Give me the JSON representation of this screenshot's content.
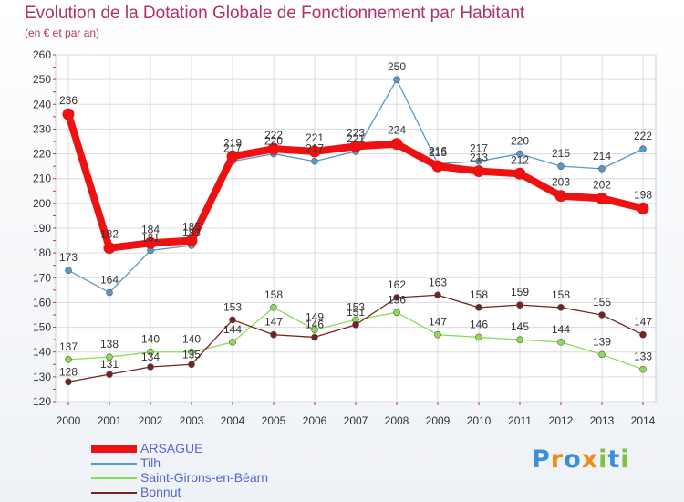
{
  "title": "Evolution de la Dotation Globale de Fonctionnement par Habitant",
  "subtitle": "(en € et par an)",
  "logo": {
    "letters": [
      "P",
      "r",
      "o",
      "x",
      "i",
      "t",
      "i"
    ],
    "colors": [
      "#3a8fd6",
      "#f08a1c",
      "#3a8fd6",
      "#f08a1c",
      "#7dc242",
      "#3a8fd6",
      "#7dc242"
    ]
  },
  "chart_data": {
    "type": "line",
    "title": "Evolution de la Dotation Globale de Fonctionnement par Habitant",
    "subtitle": "(en € et par an)",
    "x": [
      "2000",
      "2001",
      "2002",
      "2003",
      "2004",
      "2005",
      "2006",
      "2007",
      "2008",
      "2009",
      "2010",
      "2011",
      "2012",
      "2013",
      "2014"
    ],
    "ylim": [
      120,
      260
    ],
    "yticks": [
      120,
      130,
      140,
      150,
      160,
      170,
      180,
      190,
      200,
      210,
      220,
      230,
      240,
      250,
      260
    ],
    "grid": true,
    "legend_position": "bottom-left",
    "series": [
      {
        "name": "ARSAGUE",
        "color": "#ee1111",
        "values": [
          236,
          182,
          184,
          185,
          219,
          222,
          221,
          223,
          224,
          215,
          213,
          212,
          203,
          202,
          198
        ]
      },
      {
        "name": "Tilh",
        "color": "#5599cc",
        "values": [
          173,
          164,
          181,
          183,
          217,
          220,
          217,
          221,
          250,
          216,
          217,
          220,
          215,
          214,
          222
        ]
      },
      {
        "name": "Saint-Girons-en-Béarn",
        "color": "#88dd55",
        "values": [
          137,
          138,
          140,
          140,
          144,
          158,
          149,
          153,
          156,
          147,
          146,
          145,
          144,
          139,
          133
        ]
      },
      {
        "name": "Bonnut",
        "color": "#772222",
        "values": [
          128,
          131,
          134,
          135,
          153,
          147,
          146,
          151,
          162,
          163,
          158,
          159,
          158,
          155,
          147
        ]
      }
    ]
  }
}
